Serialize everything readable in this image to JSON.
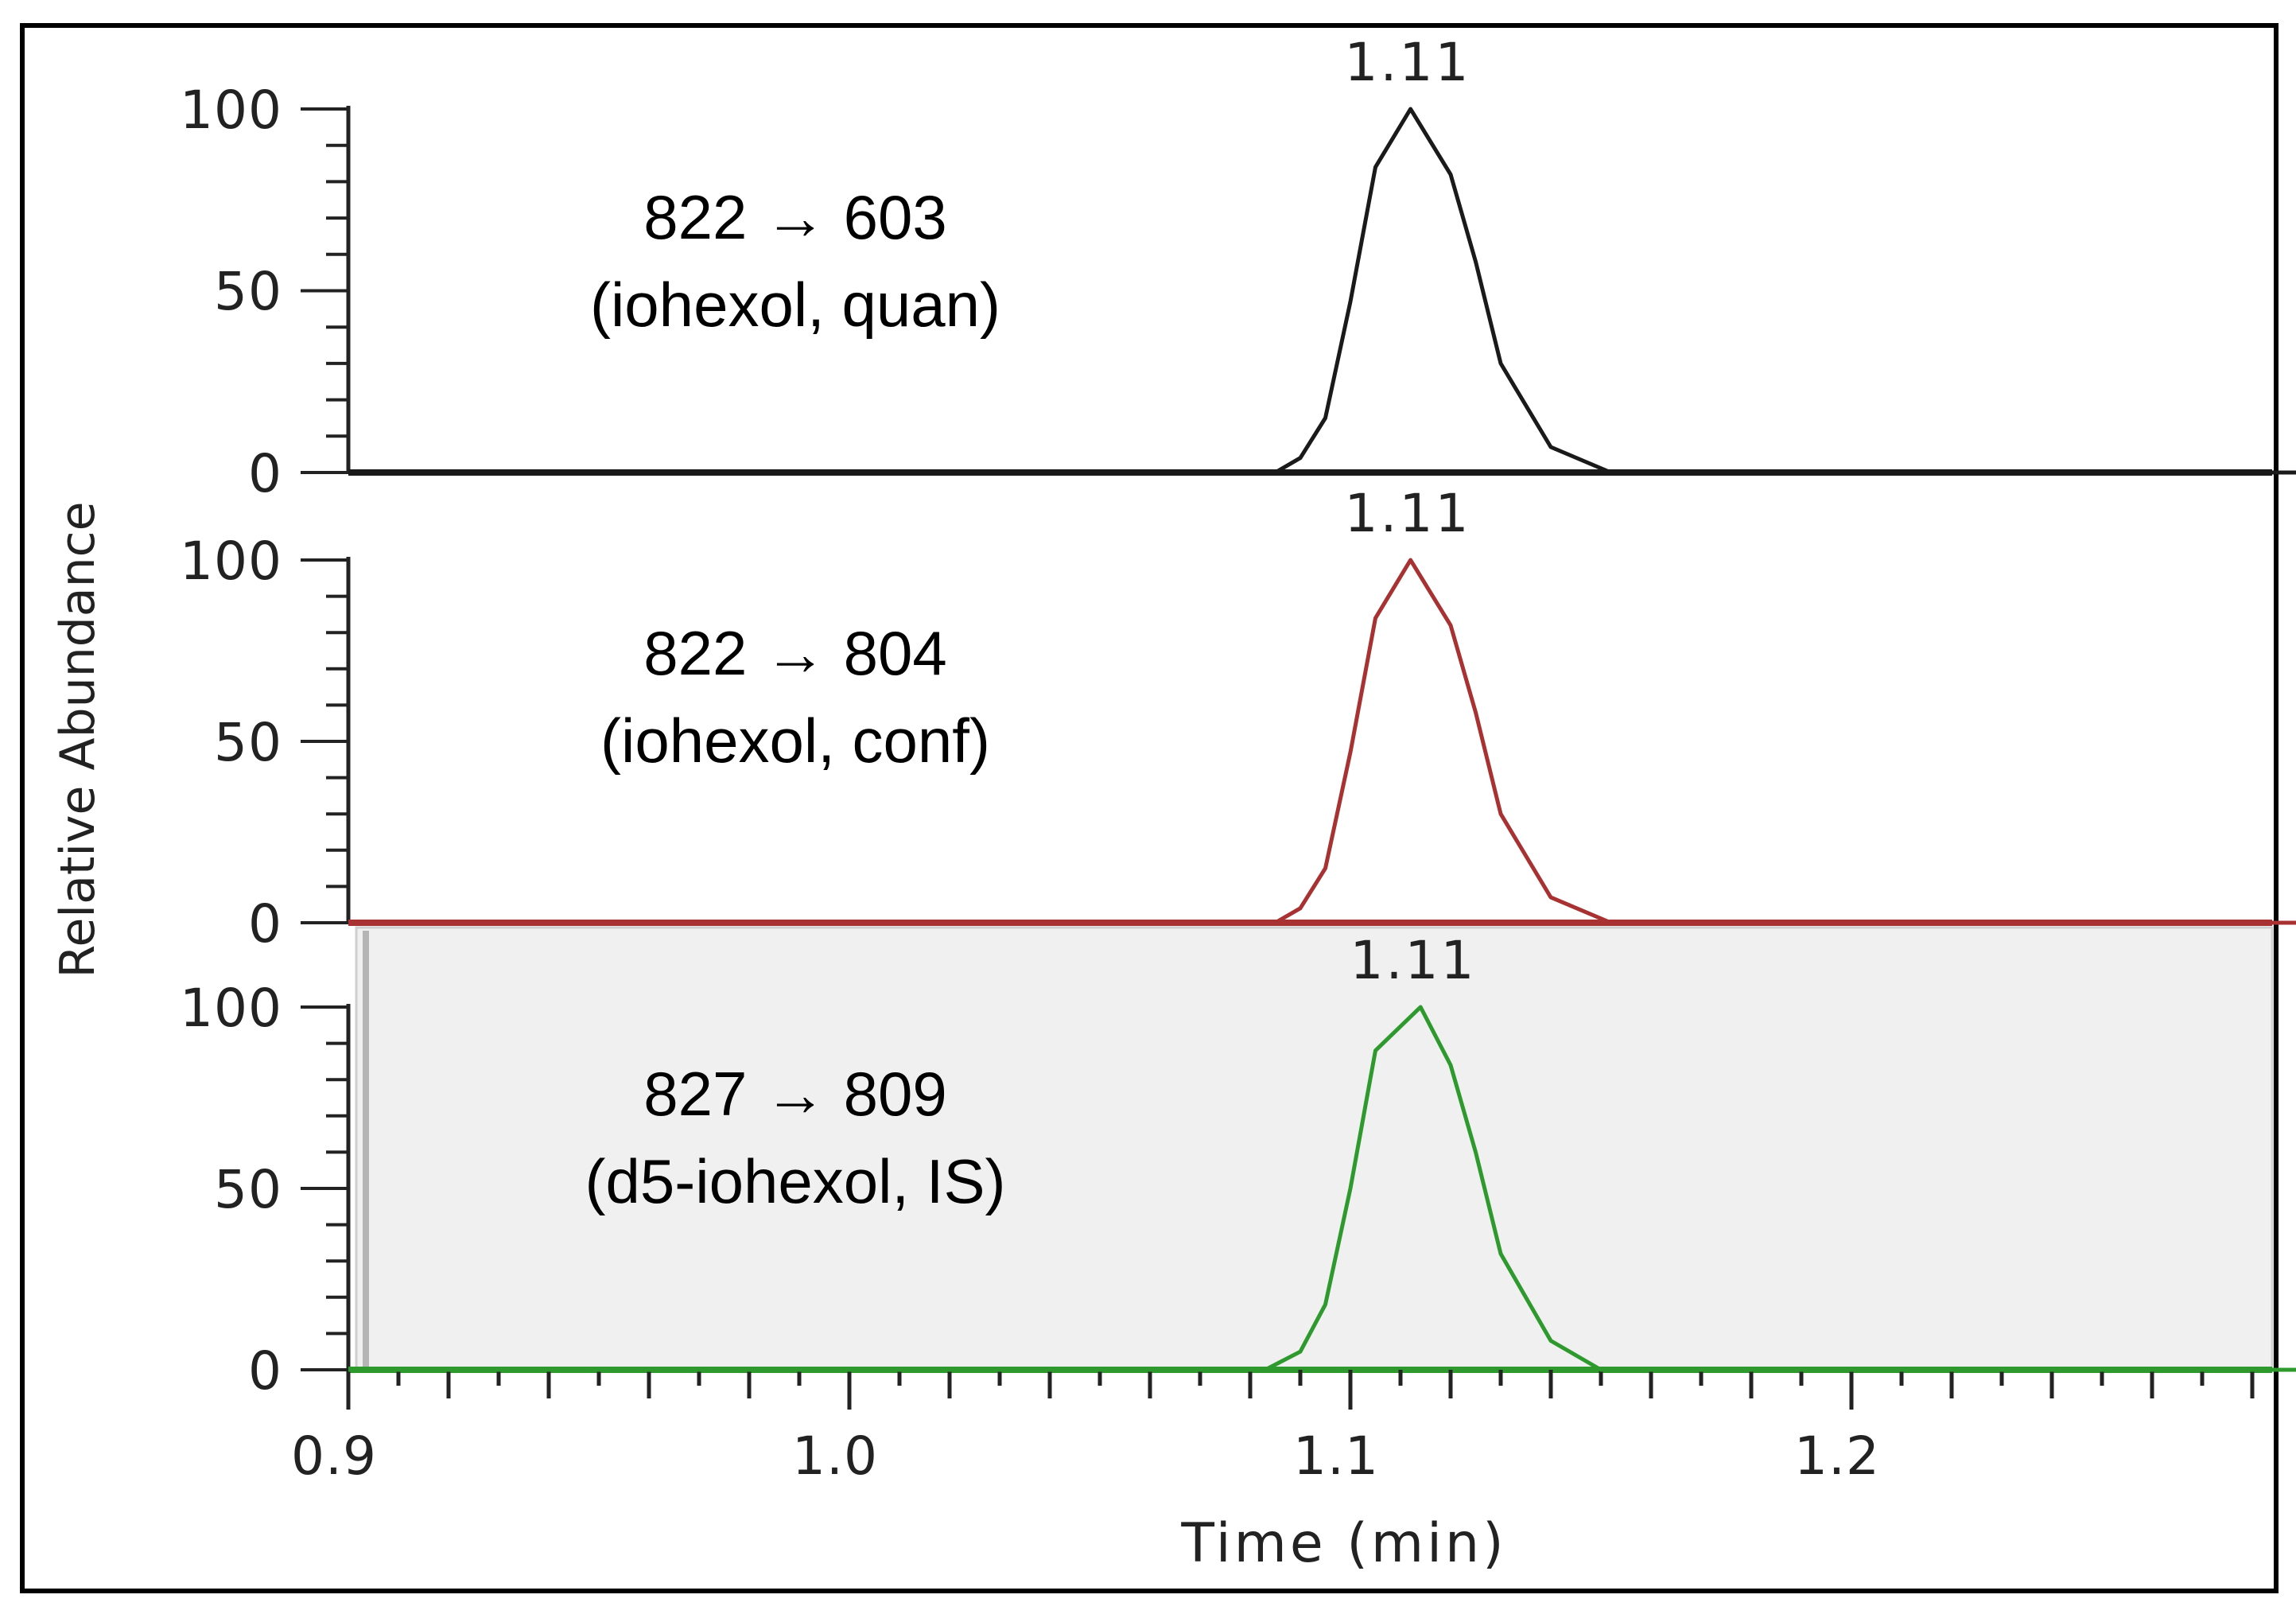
{
  "chart_data": {
    "type": "line",
    "title": "",
    "xlabel": "Time (min)",
    "ylabel": "Relative Abundance",
    "xlim": [
      0.9,
      1.29
    ],
    "ylim": [
      0,
      100
    ],
    "x_ticks": [
      {
        "value": 0.9,
        "label": "0.9"
      },
      {
        "value": 1.0,
        "label": "1.0"
      },
      {
        "value": 1.1,
        "label": "1.1"
      },
      {
        "value": 1.2,
        "label": "1.2"
      }
    ],
    "y_ticks": [
      {
        "value": 0,
        "label": "0"
      },
      {
        "value": 50,
        "label": "50"
      },
      {
        "value": 100,
        "label": "100"
      }
    ],
    "panels": [
      {
        "name": "822 → 603 (iohexol, quan)",
        "transition": "822 → 603",
        "description": "(iohexol, quan)",
        "color": "#1a1a1a",
        "background": "#ffffff",
        "peak_label": "1.11",
        "apex_time": 1.112,
        "x": [
          0.9,
          1.085,
          1.09,
          1.095,
          1.1,
          1.105,
          1.112,
          1.12,
          1.125,
          1.13,
          1.14,
          1.152,
          1.29
        ],
        "y": [
          0,
          0,
          4,
          15,
          47,
          84,
          100,
          82,
          58,
          30,
          7,
          0,
          0
        ]
      },
      {
        "name": "822 → 804 (iohexol, conf)",
        "transition": "822 → 804",
        "description": "(iohexol, conf)",
        "color": "#a83232",
        "background": "#ffffff",
        "peak_label": "1.11",
        "apex_time": 1.112,
        "x": [
          0.9,
          1.085,
          1.09,
          1.095,
          1.1,
          1.105,
          1.112,
          1.12,
          1.125,
          1.13,
          1.14,
          1.152,
          1.29
        ],
        "y": [
          0,
          0,
          4,
          15,
          47,
          84,
          100,
          82,
          58,
          30,
          7,
          0,
          0
        ]
      },
      {
        "name": "827 → 809 (d5-iohexol, IS)",
        "transition": "827 → 809",
        "description": "(d5-iohexol, IS)",
        "color": "#2e9a2e",
        "background": "#f0f0f0",
        "peak_label": "1.11",
        "apex_time": 1.114,
        "x": [
          0.9,
          1.083,
          1.09,
          1.095,
          1.1,
          1.105,
          1.114,
          1.12,
          1.125,
          1.13,
          1.14,
          1.15,
          1.29
        ],
        "y": [
          0,
          0,
          5,
          18,
          50,
          88,
          100,
          84,
          60,
          32,
          8,
          0,
          0
        ]
      }
    ]
  }
}
